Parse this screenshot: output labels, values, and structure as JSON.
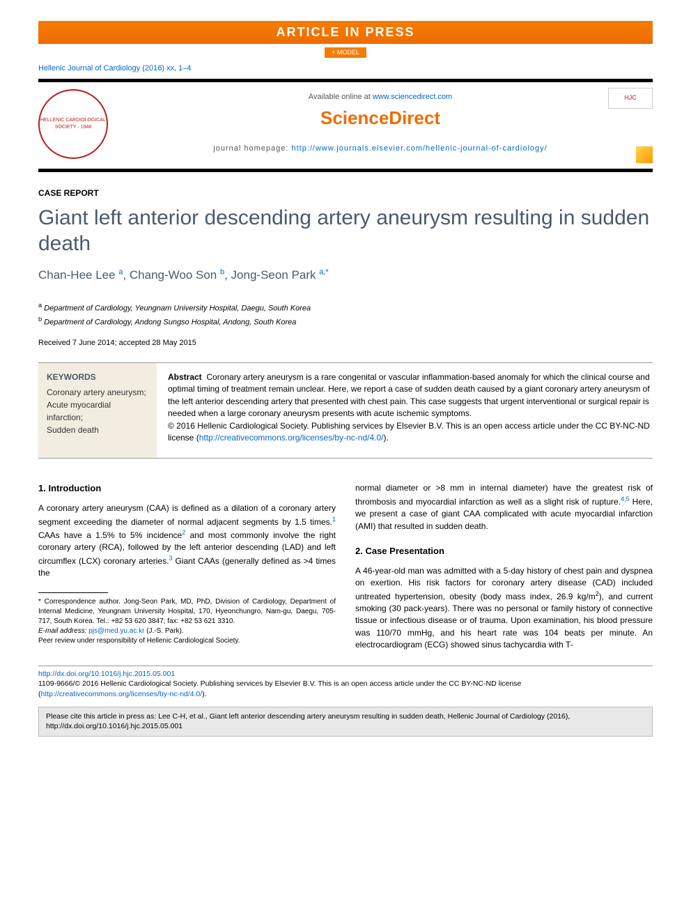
{
  "banner": {
    "press_text": "ARTICLE IN PRESS",
    "model_text": "+ MODEL"
  },
  "citation_top": "Hellenic Journal of Cardiology (2016) xx, 1–4",
  "header": {
    "available_prefix": "Available online at ",
    "available_url": "www.sciencedirect.com",
    "brand": "ScienceDirect",
    "homepage_prefix": "journal homepage: ",
    "homepage_url": "http://www.journals.elsevier.com/hellenic-journal-of-cardiology/",
    "logo_text": "HELLENIC CARDIOLOGICAL SOCIETY · 1948",
    "hjc_badge": "HJC"
  },
  "article": {
    "type": "CASE REPORT",
    "title": "Giant left anterior descending artery aneurysm resulting in sudden death",
    "authors_html": "Chan-Hee Lee <sup>a</sup>, Chang-Woo Son <sup>b</sup>, Jong-Seon Park <sup>a,*</sup>",
    "affil_a": "Department of Cardiology, Yeungnam University Hospital, Daegu, South Korea",
    "affil_b": "Department of Cardiology, Andong Sungso Hospital, Andong, South Korea",
    "dates": "Received 7 June 2014; accepted 28 May 2015"
  },
  "keywords": {
    "heading": "KEYWORDS",
    "items": "Coronary artery aneurysm;\nAcute myocardial infarction;\nSudden death"
  },
  "abstract": {
    "label": "Abstract",
    "text": "Coronary artery aneurysm is a rare congenital or vascular inflammation-based anomaly for which the clinical course and optimal timing of treatment remain unclear. Here, we report a case of sudden death caused by a giant coronary artery aneurysm of the left anterior descending artery that presented with chest pain. This case suggests that urgent interventional or surgical repair is needed when a large coronary aneurysm presents with acute ischemic symptoms.",
    "copyright": "© 2016 Hellenic Cardiological Society. Publishing services by Elsevier B.V. This is an open access article under the CC BY-NC-ND license (",
    "license_url": "http://creativecommons.org/licenses/by-nc-nd/4.0/",
    "copyright_close": ")."
  },
  "sections": {
    "intro_heading": "1. Introduction",
    "intro_p1_a": "A coronary artery aneurysm (CAA) is defined as a dilation of a coronary artery segment exceeding the diameter of normal adjacent segments by 1.5 times.",
    "intro_p1_b": " CAAs have a 1.5% to 5% incidence",
    "intro_p1_c": " and most commonly involve the right coronary artery (RCA), followed by the left anterior descending (LAD) and left circumflex (LCX) coronary arteries.",
    "intro_p1_d": " Giant CAAs (generally defined as >4 times the",
    "col2_cont": "normal diameter or >8 mm in internal diameter) have the greatest risk of thrombosis and myocardial infarction as well as a slight risk of rupture.",
    "col2_cont_b": " Here, we present a case of giant CAA complicated with acute myocardial infarction (AMI) that resulted in sudden death.",
    "case_heading": "2. Case Presentation",
    "case_p1_a": "A 46-year-old man was admitted with a 5-day history of chest pain and dyspnea on exertion. His risk factors for coronary artery disease (CAD) included untreated hypertension, obesity (body mass index, 26.9 kg/m",
    "case_p1_b": "), and current smoking (30 pack-years). There was no personal or family history of connective tissue or infectious disease or of trauma. Upon examination, his blood pressure was 110/70 mmHg, and his heart rate was 104 beats per minute. An electrocardiogram (ECG) showed sinus tachycardia with T-"
  },
  "footnotes": {
    "corr": "* Correspondence author. Jong-Seon Park, MD, PhD, Division of Cardiology, Department of Internal Medicine, Yeungnam University Hospital, 170, Hyeonchungro, Nam-gu, Daegu, 705-717, South Korea. Tel.: +82 53 620 3847; fax: +82 53 621 3310.",
    "email_label": "E-mail address: ",
    "email": "pjs@med.yu.ac.kr",
    "email_name": " (J.-S. Park).",
    "peer": "Peer review under responsibility of Hellenic Cardiological Society."
  },
  "doi": {
    "url": "http://dx.doi.org/10.1016/j.hjc.2015.05.001",
    "issn_line": "1109-9666/© 2016 Hellenic Cardiological Society. Publishing services by Elsevier B.V. This is an open access article under the CC BY-NC-ND license (",
    "license_url": "http://creativecommons.org/licenses/by-nc-nd/4.0/",
    "close": ")."
  },
  "cite_box": "Please cite this article in press as: Lee C-H, et al., Giant left anterior descending artery aneurysm resulting in sudden death, Hellenic Journal of Cardiology (2016), http://dx.doi.org/10.1016/j.hjc.2015.05.001",
  "refs": {
    "r1": "1",
    "r2": "2",
    "r3": "3",
    "r45": "4,5"
  },
  "colors": {
    "orange": "#ef6c00",
    "link": "#0066cc",
    "title_gray": "#4a5a6a",
    "keywords_bg": "#f3ede1"
  }
}
